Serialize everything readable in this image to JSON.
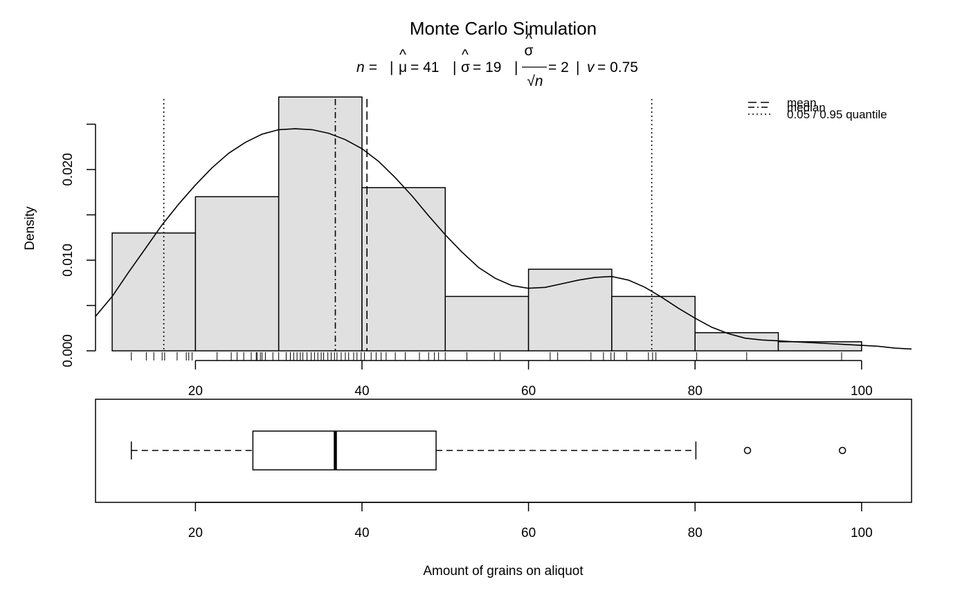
{
  "chart_data": [
    {
      "type": "histogram",
      "title": "Monte Carlo Simulation",
      "subtitle": {
        "n_label": "n =",
        "n_value": "",
        "mu_label": "μ",
        "mu_eq": "= 41",
        "sigma_label": "σ",
        "sigma_eq": "= 19",
        "se_num": "σ",
        "se_den": "√n",
        "se_eq": "= 2",
        "v_label": "v",
        "v_eq": "= 0.75",
        "sep": "|"
      },
      "ylabel": "Density",
      "xlim": [
        8,
        106
      ],
      "ylim": [
        0,
        0.025
      ],
      "x_ticks": [
        20,
        40,
        60,
        80,
        100
      ],
      "y_ticks": [
        0.0,
        0.01,
        0.02
      ],
      "y_ticks_minor": [
        0.005,
        0.015,
        0.025
      ],
      "y_tick_labels": [
        "0.000",
        "0.010",
        "0.020"
      ],
      "x_tick_labels": [
        "20",
        "40",
        "60",
        "80",
        "100"
      ],
      "bins": [
        {
          "x0": 10,
          "x1": 20,
          "density": 0.013
        },
        {
          "x0": 20,
          "x1": 30,
          "density": 0.017
        },
        {
          "x0": 30,
          "x1": 40,
          "density": 0.028
        },
        {
          "x0": 40,
          "x1": 50,
          "density": 0.018
        },
        {
          "x0": 50,
          "x1": 60,
          "density": 0.006
        },
        {
          "x0": 60,
          "x1": 70,
          "density": 0.009
        },
        {
          "x0": 70,
          "x1": 80,
          "density": 0.006
        },
        {
          "x0": 80,
          "x1": 90,
          "density": 0.002
        },
        {
          "x0": 90,
          "x1": 100,
          "density": 0.001
        }
      ],
      "density_curve": [
        [
          8,
          0.0038
        ],
        [
          10,
          0.006
        ],
        [
          12,
          0.0087
        ],
        [
          14,
          0.0113
        ],
        [
          16,
          0.0139
        ],
        [
          18,
          0.0162
        ],
        [
          20,
          0.0183
        ],
        [
          22,
          0.0202
        ],
        [
          24,
          0.0218
        ],
        [
          26,
          0.023
        ],
        [
          28,
          0.0239
        ],
        [
          30,
          0.0244
        ],
        [
          32,
          0.0245
        ],
        [
          34,
          0.0244
        ],
        [
          36,
          0.024
        ],
        [
          38,
          0.0233
        ],
        [
          40,
          0.0223
        ],
        [
          42,
          0.0209
        ],
        [
          44,
          0.0191
        ],
        [
          46,
          0.0171
        ],
        [
          48,
          0.0149
        ],
        [
          50,
          0.0128
        ],
        [
          52,
          0.0109
        ],
        [
          54,
          0.0092
        ],
        [
          56,
          0.008
        ],
        [
          58,
          0.0072
        ],
        [
          60,
          0.0069
        ],
        [
          62,
          0.007
        ],
        [
          64,
          0.0074
        ],
        [
          66,
          0.0078
        ],
        [
          68,
          0.0081
        ],
        [
          70,
          0.0082
        ],
        [
          72,
          0.0078
        ],
        [
          74,
          0.007
        ],
        [
          76,
          0.0059
        ],
        [
          78,
          0.0047
        ],
        [
          80,
          0.0036
        ],
        [
          82,
          0.0026
        ],
        [
          84,
          0.0019
        ],
        [
          86,
          0.0014
        ],
        [
          88,
          0.0012
        ],
        [
          90,
          0.0011
        ],
        [
          92,
          0.001
        ],
        [
          94,
          0.0009
        ],
        [
          96,
          0.0008
        ],
        [
          98,
          0.0007
        ],
        [
          100,
          0.0006
        ],
        [
          102,
          0.0005
        ],
        [
          104,
          0.0003
        ],
        [
          106,
          0.0002
        ]
      ],
      "reference_lines": [
        {
          "name": "mean",
          "x": 40.6,
          "style": "dashed"
        },
        {
          "name": "median",
          "x": 36.8,
          "style": "dashdot"
        },
        {
          "name": "0.05 / 0.95 quantile",
          "x": 16.2,
          "style": "dotted"
        },
        {
          "name": "0.05 / 0.95 quantile",
          "x": 74.8,
          "style": "dotted"
        }
      ],
      "legend": {
        "placement": "top-right",
        "entries": [
          {
            "label": "mean",
            "style": "dashed"
          },
          {
            "label": "median",
            "style": "dashdot"
          },
          {
            "label": "0.05 / 0.95 quantile",
            "style": "dotted"
          }
        ]
      },
      "rug": [
        12.3,
        14.1,
        15.0,
        16.0,
        16.3,
        17.8,
        18.9,
        19.2,
        19.6,
        22.6,
        24.3,
        25.0,
        25.8,
        26.7,
        27.3,
        27.4,
        27.8,
        28.0,
        28.4,
        29.3,
        30.0,
        30.9,
        31.4,
        31.8,
        32.2,
        32.6,
        32.9,
        33.4,
        33.9,
        34.3,
        34.7,
        35.1,
        35.4,
        35.9,
        36.3,
        36.7,
        37.0,
        37.5,
        38.0,
        38.4,
        39.0,
        39.4,
        39.9,
        40.3,
        41.1,
        41.7,
        42.3,
        42.9,
        44.0,
        45.2,
        46.9,
        48.0,
        48.7,
        49.2,
        50.0,
        52.6,
        55.9,
        56.6,
        62.6,
        63.5,
        67.5,
        69.0,
        69.9,
        70.3,
        71.8,
        74.4,
        74.9,
        75.3,
        80.2,
        86.2,
        97.6
      ]
    },
    {
      "type": "boxplot",
      "xlabel": "Amount of grains on aliquot",
      "xlim": [
        8,
        106
      ],
      "x_ticks": [
        20,
        40,
        60,
        80,
        100
      ],
      "x_tick_labels": [
        "20",
        "40",
        "60",
        "80",
        "100"
      ],
      "whisker_low": 12.3,
      "q1": 26.9,
      "median": 36.8,
      "q3": 48.9,
      "whisker_high": 80.1,
      "outliers": [
        86.3,
        97.7
      ]
    }
  ]
}
